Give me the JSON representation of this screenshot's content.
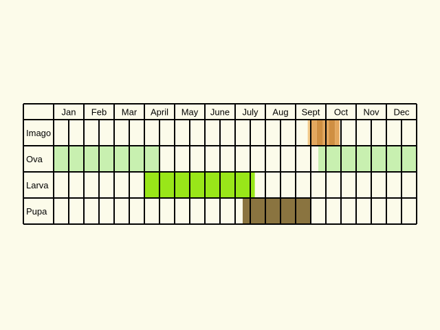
{
  "chart_data": {
    "type": "table",
    "columns": [
      "Jan",
      "Feb",
      "Mar",
      "April",
      "May",
      "June",
      "July",
      "Aug",
      "Sept",
      "Oct",
      "Nov",
      "Dec"
    ],
    "rows": [
      {
        "label": "Imago",
        "periods": [
          {
            "start_half_month": 16.8,
            "end_half_month": 17.0,
            "color": "#f2c98a"
          },
          {
            "start_half_month": 17.0,
            "end_half_month": 17.4,
            "color": "#e3a75e"
          },
          {
            "start_half_month": 17.4,
            "end_half_month": 17.8,
            "color": "#cf8f42"
          },
          {
            "start_half_month": 17.8,
            "end_half_month": 18.2,
            "color": "#e3a75e"
          },
          {
            "start_half_month": 18.2,
            "end_half_month": 18.6,
            "color": "#cf8f42"
          },
          {
            "start_half_month": 18.6,
            "end_half_month": 18.9,
            "color": "#e3a75e"
          }
        ]
      },
      {
        "label": "Ova",
        "periods": [
          {
            "start_half_month": 0,
            "end_half_month": 7,
            "color": "#c8f0b0"
          },
          {
            "start_half_month": 17.5,
            "end_half_month": 24,
            "color": "#c8f0b0"
          }
        ]
      },
      {
        "label": "Larva",
        "periods": [
          {
            "start_half_month": 6,
            "end_half_month": 13.3,
            "color": "#99e619"
          }
        ]
      },
      {
        "label": "Pupa",
        "periods": [
          {
            "start_half_month": 12.5,
            "end_half_month": 17,
            "color": "#8a7440"
          }
        ]
      }
    ]
  }
}
